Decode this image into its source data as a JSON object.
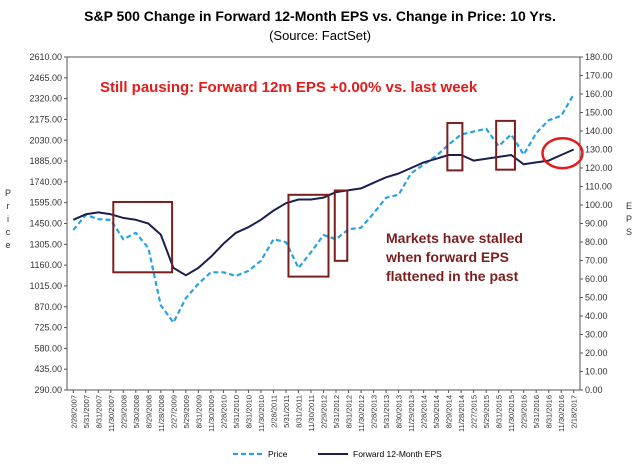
{
  "chart_data": {
    "type": "line",
    "title": "S&P 500 Change in Forward 12-Month EPS vs. Change in Price: 10 Yrs.",
    "subtitle": "(Source: FactSet)",
    "ylabel_left": "Price",
    "ylabel_right": "EPS",
    "ylim_left": [
      290,
      2610
    ],
    "ylim_right": [
      0,
      180
    ],
    "left_ticks": [
      "290.00",
      "435.00",
      "580.00",
      "725.00",
      "870.00",
      "1015.00",
      "1160.00",
      "1305.00",
      "1450.00",
      "1595.00",
      "1740.00",
      "1885.00",
      "2030.00",
      "2175.00",
      "2320.00",
      "2465.00",
      "2610.00"
    ],
    "right_ticks": [
      "0.00",
      "10.00",
      "20.00",
      "30.00",
      "40.00",
      "50.00",
      "60.00",
      "70.00",
      "80.00",
      "90.00",
      "100.00",
      "110.00",
      "120.00",
      "130.00",
      "140.00",
      "150.00",
      "160.00",
      "170.00",
      "180.00"
    ],
    "x_ticks": [
      "2/28/2007",
      "5/31/2007",
      "8/31/2007",
      "11/30/2007",
      "2/29/2008",
      "5/30/2008",
      "8/29/2008",
      "11/28/2008",
      "2/27/2009",
      "5/29/2009",
      "8/31/2009",
      "11/30/2009",
      "2/28/2010",
      "5/31/2010",
      "8/31/2010",
      "11/30/2010",
      "2/28/2011",
      "5/31/2011",
      "8/31/2011",
      "11/30/2011",
      "2/29/2012",
      "5/31/2012",
      "8/31/2012",
      "11/30/2012",
      "2/28/2013",
      "5/31/2013",
      "8/30/2013",
      "11/29/2013",
      "2/28/2014",
      "5/30/2014",
      "8/29/2014",
      "11/28/2014",
      "2/27/2015",
      "5/29/2015",
      "8/31/2015",
      "11/30/2015",
      "2/29/2016",
      "5/31/2016",
      "8/31/2016",
      "11/30/2016",
      "2/18/2017"
    ],
    "series": [
      {
        "name": "Price",
        "axis": "left",
        "color": "#29a3e0",
        "style": "dashed",
        "values": [
          1405,
          1510,
          1480,
          1475,
          1340,
          1385,
          1280,
          880,
          760,
          930,
          1030,
          1110,
          1110,
          1085,
          1120,
          1190,
          1340,
          1320,
          1140,
          1250,
          1370,
          1340,
          1410,
          1420,
          1520,
          1630,
          1650,
          1800,
          1860,
          1920,
          2000,
          2070,
          2090,
          2110,
          1990,
          2070,
          1930,
          2080,
          2170,
          2200,
          2350
        ]
      },
      {
        "name": "Forward 12-Month EPS",
        "axis": "right",
        "color": "#1a1f4e",
        "style": "solid",
        "values": [
          92,
          95,
          96,
          95,
          93,
          92,
          90,
          84,
          66,
          62,
          66,
          72,
          79,
          85,
          88,
          92,
          97,
          101,
          103,
          103,
          104,
          107,
          108,
          109,
          112,
          115,
          117,
          120,
          123,
          125,
          127,
          127,
          124,
          125,
          126,
          127,
          122,
          123,
          124,
          127,
          130
        ]
      }
    ],
    "annotations": {
      "headline": "Still pausing: Forward 12m EPS +0.00% vs. last week",
      "note_lines": [
        "Markets have stalled",
        "when forward EPS",
        "flattened in the past"
      ]
    },
    "highlight_boxes": [
      {
        "x_range": [
          3.7,
          8.4
        ],
        "y_range_left": [
          1110,
          1600
        ]
      },
      {
        "x_range": [
          17.7,
          20.9
        ],
        "y_range_left": [
          1080,
          1650
        ]
      },
      {
        "x_range": [
          21.4,
          22.4
        ],
        "y_range_left": [
          1190,
          1680
        ]
      },
      {
        "x_range": [
          30.4,
          31.6
        ],
        "y_range_left": [
          1820,
          2150
        ]
      },
      {
        "x_range": [
          34.3,
          35.8
        ],
        "y_range_left": [
          1825,
          2165
        ]
      }
    ],
    "highlight_circle": {
      "x": 39.6,
      "y_right": 128
    },
    "legend": {
      "position": "bottom",
      "entries": [
        "Price",
        "Forward 12-Month EPS"
      ]
    },
    "grid": false,
    "colors": {
      "headline": "#e31b1b",
      "note": "#7b1e1e",
      "box": "#7b1e1e",
      "circle": "#e31b1b"
    }
  }
}
